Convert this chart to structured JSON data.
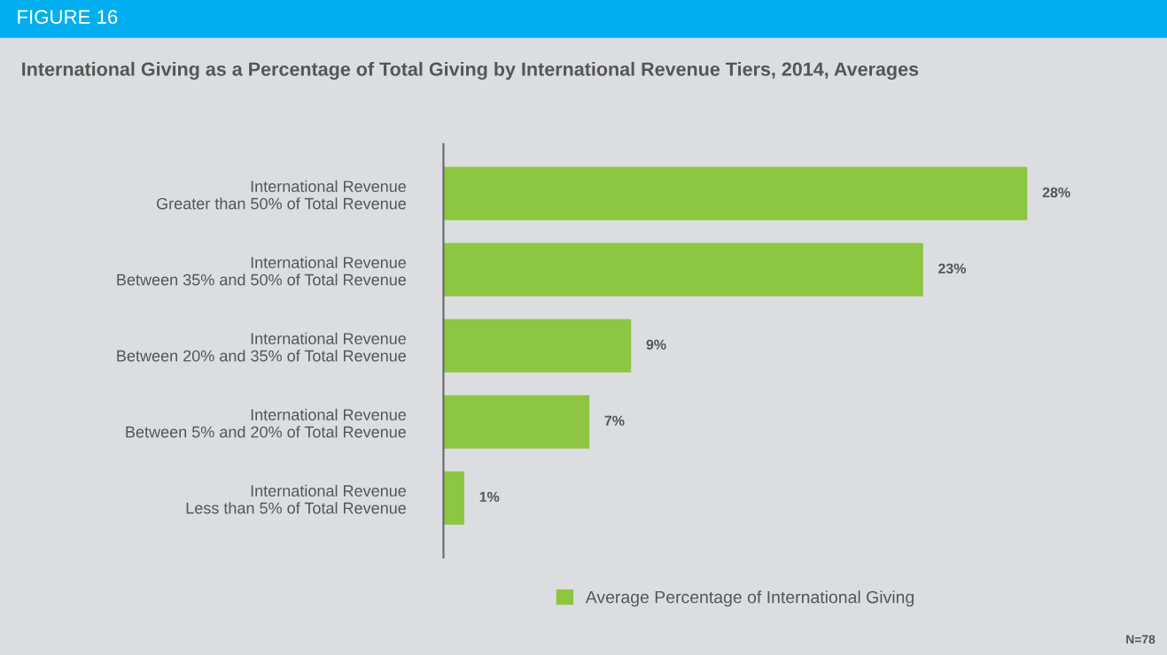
{
  "chart_data": {
    "type": "bar",
    "orientation": "horizontal",
    "title": "International Giving as a Percentage of Total Giving by International Revenue Tiers, 2014, Averages",
    "categories": [
      "International Revenue\nGreater than 50% of Total Revenue",
      "International Revenue\nBetween 35% and 50% of Total Revenue",
      "International Revenue\nBetween 20% and 35% of Total Revenue",
      "International Revenue\nBetween 5% and 20% of Total Revenue",
      "International Revenue\nLess than 5% of Total Revenue"
    ],
    "series": [
      {
        "name": "Average Percentage of International Giving",
        "color": "#8dc641",
        "values": [
          28,
          23,
          9,
          7,
          1
        ],
        "value_labels": [
          "28%",
          "23%",
          "9%",
          "7%",
          "1%"
        ]
      }
    ],
    "tick_labels": "y",
    "legend": "bottom",
    "grid": false,
    "annotations": [
      "FIGURE 16",
      "N=78"
    ]
  }
}
